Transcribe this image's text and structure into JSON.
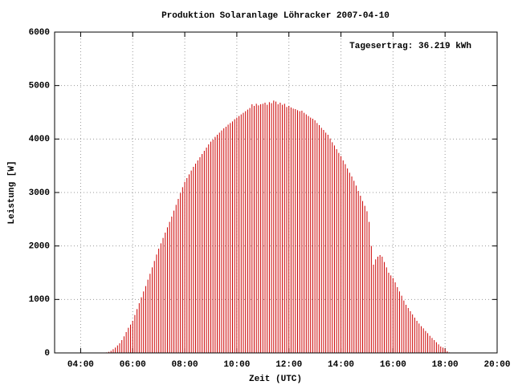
{
  "chart_data": {
    "type": "impulse",
    "title": "Produktion Solaranlage Löhracker 2007-04-10",
    "annotation": "Tagesertrag: 36.219 kWh",
    "xlabel": "Zeit (UTC)",
    "ylabel": "Leistung [W]",
    "color": "#cc0000",
    "grid": true,
    "xlim": [
      180,
      1200
    ],
    "xticks": [
      {
        "value": 240,
        "label": "04:00"
      },
      {
        "value": 360,
        "label": "06:00"
      },
      {
        "value": 480,
        "label": "08:00"
      },
      {
        "value": 600,
        "label": "10:00"
      },
      {
        "value": 720,
        "label": "12:00"
      },
      {
        "value": 840,
        "label": "14:00"
      },
      {
        "value": 960,
        "label": "16:00"
      },
      {
        "value": 1080,
        "label": "18:00"
      },
      {
        "value": 1200,
        "label": "20:00"
      }
    ],
    "ylim": [
      0,
      6000
    ],
    "yticks": [
      0,
      1000,
      2000,
      3000,
      4000,
      5000,
      6000
    ],
    "x": [
      300,
      305,
      310,
      315,
      320,
      325,
      330,
      335,
      340,
      345,
      350,
      355,
      360,
      365,
      370,
      375,
      380,
      385,
      390,
      395,
      400,
      405,
      410,
      415,
      420,
      425,
      430,
      435,
      440,
      445,
      450,
      455,
      460,
      465,
      470,
      475,
      480,
      485,
      490,
      495,
      500,
      505,
      510,
      515,
      520,
      525,
      530,
      535,
      540,
      545,
      550,
      555,
      560,
      565,
      570,
      575,
      580,
      585,
      590,
      595,
      600,
      605,
      610,
      615,
      620,
      625,
      630,
      635,
      640,
      645,
      650,
      655,
      660,
      665,
      670,
      675,
      680,
      685,
      690,
      695,
      700,
      705,
      710,
      715,
      720,
      725,
      730,
      735,
      740,
      745,
      750,
      755,
      760,
      765,
      770,
      775,
      780,
      785,
      790,
      795,
      800,
      805,
      810,
      815,
      820,
      825,
      830,
      835,
      840,
      845,
      850,
      855,
      860,
      865,
      870,
      875,
      880,
      885,
      890,
      895,
      900,
      905,
      910,
      915,
      920,
      925,
      930,
      935,
      940,
      945,
      950,
      955,
      960,
      965,
      970,
      975,
      980,
      985,
      990,
      995,
      1000,
      1005,
      1010,
      1015,
      1020,
      1025,
      1030,
      1035,
      1040,
      1045,
      1050,
      1055,
      1060,
      1065,
      1070,
      1075,
      1080,
      1085,
      1090
    ],
    "values": [
      10,
      20,
      40,
      70,
      100,
      140,
      180,
      240,
      310,
      390,
      470,
      530,
      600,
      710,
      820,
      930,
      1040,
      1150,
      1250,
      1370,
      1480,
      1600,
      1720,
      1840,
      1950,
      2050,
      2150,
      2250,
      2350,
      2450,
      2550,
      2660,
      2770,
      2880,
      2990,
      3100,
      3200,
      3270,
      3340,
      3410,
      3480,
      3540,
      3600,
      3660,
      3720,
      3780,
      3840,
      3900,
      3950,
      3990,
      4040,
      4080,
      4120,
      4160,
      4200,
      4230,
      4270,
      4300,
      4330,
      4370,
      4400,
      4430,
      4460,
      4490,
      4520,
      4550,
      4580,
      4650,
      4620,
      4660,
      4630,
      4650,
      4660,
      4680,
      4640,
      4690,
      4670,
      4720,
      4700,
      4650,
      4680,
      4640,
      4660,
      4600,
      4620,
      4590,
      4570,
      4560,
      4540,
      4520,
      4530,
      4490,
      4460,
      4430,
      4400,
      4380,
      4350,
      4300,
      4260,
      4210,
      4170,
      4120,
      4080,
      4010,
      3940,
      3880,
      3810,
      3740,
      3680,
      3600,
      3530,
      3450,
      3370,
      3300,
      3220,
      3130,
      3030,
      2940,
      2840,
      2750,
      2650,
      2450,
      2000,
      1650,
      1750,
      1800,
      1830,
      1800,
      1700,
      1600,
      1500,
      1450,
      1400,
      1320,
      1230,
      1150,
      1070,
      980,
      900,
      840,
      780,
      720,
      660,
      600,
      550,
      500,
      460,
      410,
      370,
      320,
      280,
      240,
      200,
      160,
      120,
      100,
      80,
      30,
      10
    ]
  }
}
